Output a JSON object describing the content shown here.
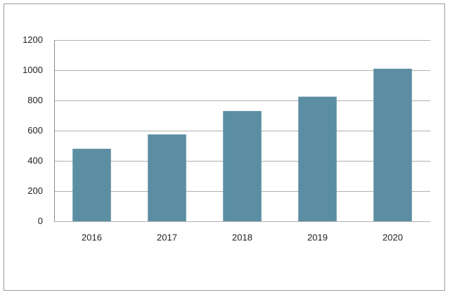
{
  "chart_data": {
    "type": "bar",
    "categories": [
      "2016",
      "2017",
      "2018",
      "2019",
      "2020"
    ],
    "values": [
      480,
      575,
      730,
      825,
      1010
    ],
    "color": "#5b8ea3",
    "ylim": [
      0,
      1200
    ],
    "yticks": [
      0,
      200,
      400,
      600,
      800,
      1000,
      1200
    ],
    "grid": true
  }
}
